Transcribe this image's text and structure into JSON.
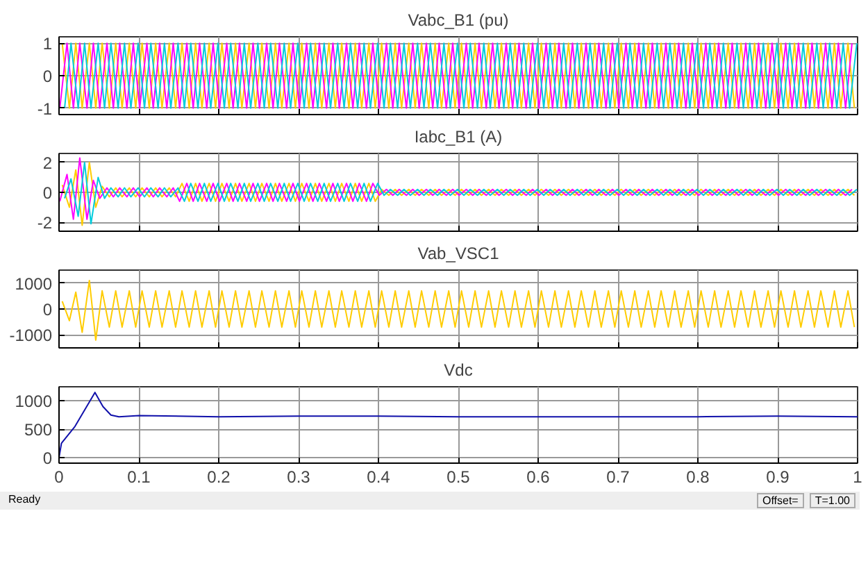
{
  "chart_data": [
    {
      "type": "line",
      "title": "Vabc_B1 (pu)",
      "xlim": [
        0,
        1
      ],
      "xticks": [
        0,
        0.1,
        0.2,
        0.3,
        0.4,
        0.5,
        0.6,
        0.7,
        0.8,
        0.9,
        1
      ],
      "ylim": [
        -1.2,
        1.2
      ],
      "yticks": [
        -1,
        0,
        1
      ],
      "grid": true,
      "tick_labels": "y",
      "series": [
        {
          "color": "#ffcc00",
          "x": [
            0.004,
            0.013,
            0.021,
            0.029,
            0.038,
            0.046,
            0.054,
            0.063,
            0.071,
            0.079,
            0.088,
            0.096,
            0.104,
            0.113,
            0.121,
            0.129,
            0.138,
            0.146,
            0.154,
            0.163,
            0.171,
            0.179,
            0.188,
            0.196,
            0.204,
            0.213,
            0.221,
            0.229,
            0.238,
            0.246,
            0.254,
            0.263,
            0.271,
            0.279,
            0.288,
            0.296,
            0.304,
            0.313,
            0.321,
            0.329,
            0.338,
            0.346,
            0.354,
            0.363,
            0.371,
            0.379,
            0.388,
            0.396,
            0.404,
            0.413,
            0.421,
            0.429,
            0.438,
            0.446,
            0.454,
            0.463,
            0.471,
            0.479,
            0.488,
            0.496,
            0.504,
            0.513,
            0.521,
            0.529,
            0.538,
            0.546,
            0.554,
            0.563,
            0.571,
            0.579,
            0.588,
            0.596,
            0.604,
            0.613,
            0.621,
            0.629,
            0.638,
            0.646,
            0.654,
            0.663,
            0.671,
            0.679,
            0.688,
            0.696,
            0.704,
            0.713,
            0.721,
            0.729,
            0.738,
            0.746,
            0.754,
            0.763,
            0.771,
            0.779,
            0.788,
            0.796,
            0.804,
            0.813,
            0.821,
            0.829,
            0.838,
            0.846,
            0.854,
            0.863,
            0.871,
            0.879,
            0.888,
            0.896,
            0.904,
            0.913,
            0.921,
            0.929,
            0.938,
            0.946,
            0.954,
            0.963,
            0.971,
            0.979,
            0.988,
            0.996
          ],
          "values": [
            1,
            -1,
            1,
            -1,
            1,
            -1,
            1,
            -1,
            1,
            -1,
            1,
            -1,
            1,
            -1,
            1,
            -1,
            1,
            -1,
            1,
            -1,
            1,
            -1,
            1,
            -1,
            1,
            -1,
            1,
            -1,
            1,
            -1,
            1,
            -1,
            1,
            -1,
            1,
            -1,
            1,
            -1,
            1,
            -1,
            1,
            -1,
            1,
            -1,
            1,
            -1,
            1,
            -1,
            1,
            -1,
            1,
            -1,
            1,
            -1,
            1,
            -1,
            1,
            -1,
            1,
            -1,
            1,
            -1,
            1,
            -1,
            1,
            -1,
            1,
            -1,
            1,
            -1,
            1,
            -1,
            1,
            -1,
            1,
            -1,
            1,
            -1,
            1,
            -1,
            1,
            -1,
            1,
            -1,
            1,
            -1,
            1,
            -1,
            1,
            -1,
            1,
            -1,
            1,
            -1,
            1,
            -1,
            1,
            -1,
            1,
            -1,
            1,
            -1,
            1,
            -1,
            1,
            -1,
            1,
            -1,
            1,
            -1,
            1,
            -1,
            1,
            -1,
            1,
            -1,
            1,
            -1,
            1,
            -1
          ]
        },
        {
          "color": "#ff00ff",
          "x": [
            0.001,
            0.01,
            0.018,
            0.026,
            0.035,
            0.043,
            0.051,
            0.06,
            0.068,
            0.076,
            0.085,
            0.093,
            0.101,
            0.11,
            0.118,
            0.126,
            0.135,
            0.143,
            0.151,
            0.16,
            0.168,
            0.176,
            0.185,
            0.193,
            0.201,
            0.21,
            0.218,
            0.226,
            0.235,
            0.243,
            0.251,
            0.26,
            0.268,
            0.276,
            0.285,
            0.293,
            0.301,
            0.31,
            0.318,
            0.326,
            0.335,
            0.343,
            0.351,
            0.36,
            0.368,
            0.376,
            0.385,
            0.393,
            0.401,
            0.41,
            0.418,
            0.426,
            0.435,
            0.443,
            0.451,
            0.46,
            0.468,
            0.476,
            0.485,
            0.493,
            0.501,
            0.51,
            0.518,
            0.526,
            0.535,
            0.543,
            0.551,
            0.56,
            0.568,
            0.576,
            0.585,
            0.593,
            0.601,
            0.61,
            0.618,
            0.626,
            0.635,
            0.643,
            0.651,
            0.66,
            0.668,
            0.676,
            0.685,
            0.693,
            0.701,
            0.71,
            0.718,
            0.726,
            0.735,
            0.743,
            0.751,
            0.76,
            0.768,
            0.776,
            0.785,
            0.793,
            0.801,
            0.81,
            0.818,
            0.826,
            0.835,
            0.843,
            0.851,
            0.86,
            0.868,
            0.876,
            0.885,
            0.893,
            0.901,
            0.91,
            0.918,
            0.926,
            0.935,
            0.943,
            0.951,
            0.96,
            0.968,
            0.976,
            0.985,
            0.993
          ],
          "values": [
            -1,
            1,
            -1,
            1,
            -1,
            1,
            -1,
            1,
            -1,
            1,
            -1,
            1,
            -1,
            1,
            -1,
            1,
            -1,
            1,
            -1,
            1,
            -1,
            1,
            -1,
            1,
            -1,
            1,
            -1,
            1,
            -1,
            1,
            -1,
            1,
            -1,
            1,
            -1,
            1,
            -1,
            1,
            -1,
            1,
            -1,
            1,
            -1,
            1,
            -1,
            1,
            -1,
            1,
            -1,
            1,
            -1,
            1,
            -1,
            1,
            -1,
            1,
            -1,
            1,
            -1,
            1,
            -1,
            1,
            -1,
            1,
            -1,
            1,
            -1,
            1,
            -1,
            1,
            -1,
            1,
            -1,
            1,
            -1,
            1,
            -1,
            1,
            -1,
            1,
            -1,
            1,
            -1,
            1,
            -1,
            1,
            -1,
            1,
            -1,
            1,
            -1,
            1,
            -1,
            1,
            -1,
            1,
            -1,
            1,
            -1,
            1,
            -1,
            1,
            -1,
            1,
            -1,
            1,
            -1,
            1,
            -1,
            1,
            -1,
            1,
            -1,
            1,
            -1,
            1,
            -1,
            1,
            -1,
            1
          ]
        },
        {
          "color": "#00ccdd",
          "x": [
            0.007,
            0.015,
            0.024,
            0.032,
            0.04,
            0.049,
            0.057,
            0.065,
            0.074,
            0.082,
            0.09,
            0.099,
            0.107,
            0.115,
            0.124,
            0.132,
            0.14,
            0.149,
            0.157,
            0.165,
            0.174,
            0.182,
            0.19,
            0.199,
            0.207,
            0.215,
            0.224,
            0.232,
            0.24,
            0.249,
            0.257,
            0.265,
            0.274,
            0.282,
            0.29,
            0.299,
            0.307,
            0.315,
            0.324,
            0.332,
            0.34,
            0.349,
            0.357,
            0.365,
            0.374,
            0.382,
            0.39,
            0.399,
            0.407,
            0.415,
            0.424,
            0.432,
            0.44,
            0.449,
            0.457,
            0.465,
            0.474,
            0.482,
            0.49,
            0.499,
            0.507,
            0.515,
            0.524,
            0.532,
            0.54,
            0.549,
            0.557,
            0.565,
            0.574,
            0.582,
            0.59,
            0.599,
            0.607,
            0.615,
            0.624,
            0.632,
            0.64,
            0.649,
            0.657,
            0.665,
            0.674,
            0.682,
            0.69,
            0.699,
            0.707,
            0.715,
            0.724,
            0.732,
            0.74,
            0.749,
            0.757,
            0.765,
            0.774,
            0.782,
            0.79,
            0.799,
            0.807,
            0.815,
            0.824,
            0.832,
            0.84,
            0.849,
            0.857,
            0.865,
            0.874,
            0.882,
            0.89,
            0.899,
            0.907,
            0.915,
            0.924,
            0.932,
            0.94,
            0.949,
            0.957,
            0.965,
            0.974,
            0.982,
            0.99,
            0.999
          ],
          "values": [
            -1,
            1,
            -1,
            1,
            -1,
            1,
            -1,
            1,
            -1,
            1,
            -1,
            1,
            -1,
            1,
            -1,
            1,
            -1,
            1,
            -1,
            1,
            -1,
            1,
            -1,
            1,
            -1,
            1,
            -1,
            1,
            -1,
            1,
            -1,
            1,
            -1,
            1,
            -1,
            1,
            -1,
            1,
            -1,
            1,
            -1,
            1,
            -1,
            1,
            -1,
            1,
            -1,
            1,
            -1,
            1,
            -1,
            1,
            -1,
            1,
            -1,
            1,
            -1,
            1,
            -1,
            1,
            -1,
            1,
            -1,
            1,
            -1,
            1,
            -1,
            1,
            -1,
            1,
            -1,
            1,
            -1,
            1,
            -1,
            1,
            -1,
            1,
            -1,
            1,
            -1,
            1,
            -1,
            1,
            -1,
            1,
            -1,
            1,
            -1,
            1,
            -1,
            1,
            -1,
            1,
            -1,
            1,
            -1,
            1,
            -1,
            1,
            -1,
            1,
            -1,
            1,
            -1,
            1,
            -1,
            1,
            -1,
            1,
            -1,
            1,
            -1,
            1,
            -1,
            1,
            -1,
            1,
            -1,
            1
          ]
        }
      ]
    },
    {
      "type": "line",
      "title": "Iabc_B1 (A)",
      "xlim": [
        0,
        1
      ],
      "xticks": [
        0,
        0.1,
        0.2,
        0.3,
        0.4,
        0.5,
        0.6,
        0.7,
        0.8,
        0.9,
        1
      ],
      "ylim": [
        -2.6,
        2.6
      ],
      "yticks": [
        -2,
        0,
        2
      ],
      "grid": true,
      "tick_labels": "y",
      "series": [
        {
          "color": "#ffcc00",
          "x": [
            0.004,
            0.013,
            0.021,
            0.029,
            0.038,
            0.046,
            0.054,
            0.063,
            0.071,
            0.079,
            0.088,
            0.096,
            0.104,
            0.113,
            0.121,
            0.129,
            0.138,
            0.146,
            0.154,
            0.163,
            0.171,
            0.179,
            0.188,
            0.196,
            0.204,
            0.213,
            0.221,
            0.229,
            0.238,
            0.246,
            0.254,
            0.263,
            0.271,
            0.279,
            0.288,
            0.296,
            0.304,
            0.313,
            0.321,
            0.329,
            0.338,
            0.346,
            0.354,
            0.363,
            0.371,
            0.379,
            0.388,
            0.396,
            0.404,
            0.413,
            0.421,
            0.429,
            0.438,
            0.446,
            0.454,
            0.463,
            0.471,
            0.479,
            0.488,
            0.496,
            0.504,
            0.513,
            0.521,
            0.529,
            0.538,
            0.546,
            0.554,
            0.563,
            0.571,
            0.579,
            0.588,
            0.596,
            0.604,
            0.613,
            0.621,
            0.629,
            0.638,
            0.646,
            0.654,
            0.663,
            0.671,
            0.679,
            0.688,
            0.696,
            0.704,
            0.713,
            0.721,
            0.729,
            0.738,
            0.746,
            0.754,
            0.763,
            0.771,
            0.779,
            0.788,
            0.796,
            0.804,
            0.813,
            0.821,
            0.829,
            0.838,
            0.846,
            0.854,
            0.863,
            0.871,
            0.879,
            0.888,
            0.896,
            0.904,
            0.913,
            0.921,
            0.929,
            0.938,
            0.946,
            0.954,
            0.963,
            0.971,
            0.979,
            0.988,
            0.996
          ],
          "values": [
            0.5,
            -1.0,
            1.5,
            -2.2,
            2.0,
            -1.0,
            0.4,
            -0.3,
            0.3,
            -0.3,
            0.3,
            -0.3,
            0.3,
            -0.3,
            0.3,
            -0.3,
            0.3,
            -0.3,
            0.6,
            -0.6,
            0.6,
            -0.6,
            0.6,
            -0.6,
            0.6,
            -0.6,
            0.6,
            -0.6,
            0.6,
            -0.6,
            0.6,
            -0.6,
            0.6,
            -0.6,
            0.6,
            -0.6,
            0.6,
            -0.6,
            0.6,
            -0.6,
            0.6,
            -0.6,
            0.6,
            -0.6,
            0.6,
            -0.6,
            0.6,
            -0.6,
            0.2,
            -0.2,
            0.2,
            -0.2,
            0.2,
            -0.2,
            0.2,
            -0.2,
            0.2,
            -0.2,
            0.2,
            -0.2,
            0.2,
            -0.2,
            0.2,
            -0.2,
            0.2,
            -0.2,
            0.2,
            -0.2,
            0.2,
            -0.2,
            0.2,
            -0.2,
            0.2,
            -0.2,
            0.2,
            -0.2,
            0.2,
            -0.2,
            0.2,
            -0.2,
            0.2,
            -0.2,
            0.2,
            -0.2,
            0.2,
            -0.2,
            0.2,
            -0.2,
            0.2,
            -0.2,
            0.2,
            -0.2,
            0.2,
            -0.2,
            0.2,
            -0.2,
            0.2,
            -0.2,
            0.2,
            -0.2,
            0.2,
            -0.2,
            0.2,
            -0.2,
            0.2,
            -0.2,
            0.2,
            -0.2,
            0.2,
            -0.2,
            0.2,
            -0.2,
            0.2,
            -0.2,
            0.2,
            -0.2,
            0.2,
            -0.2,
            0.2,
            -0.2
          ]
        },
        {
          "color": "#ff00ff",
          "x": [
            0.001,
            0.01,
            0.018,
            0.026,
            0.035,
            0.043,
            0.051,
            0.06,
            0.068,
            0.076,
            0.085,
            0.093,
            0.101,
            0.11,
            0.118,
            0.126,
            0.135,
            0.143,
            0.151,
            0.16,
            0.168,
            0.176,
            0.185,
            0.193,
            0.201,
            0.21,
            0.218,
            0.226,
            0.235,
            0.243,
            0.251,
            0.26,
            0.268,
            0.276,
            0.285,
            0.293,
            0.301,
            0.31,
            0.318,
            0.326,
            0.335,
            0.343,
            0.351,
            0.36,
            0.368,
            0.376,
            0.385,
            0.393,
            0.401,
            0.41,
            0.418,
            0.426,
            0.435,
            0.443,
            0.451,
            0.46,
            0.468,
            0.476,
            0.485,
            0.493,
            0.501,
            0.51,
            0.518,
            0.526,
            0.535,
            0.543,
            0.551,
            0.56,
            0.568,
            0.576,
            0.585,
            0.593,
            0.601,
            0.61,
            0.618,
            0.626,
            0.635,
            0.643,
            0.651,
            0.66,
            0.668,
            0.676,
            0.685,
            0.693,
            0.701,
            0.71,
            0.718,
            0.726,
            0.735,
            0.743,
            0.751,
            0.76,
            0.768,
            0.776,
            0.785,
            0.793,
            0.801,
            0.81,
            0.818,
            0.826,
            0.835,
            0.843,
            0.851,
            0.86,
            0.868,
            0.876,
            0.885,
            0.893,
            0.901,
            0.91,
            0.918,
            0.926,
            0.935,
            0.943,
            0.951,
            0.96,
            0.968,
            0.976,
            0.985,
            0.993
          ],
          "values": [
            -0.6,
            1.2,
            -1.8,
            2.3,
            -1.8,
            0.8,
            -0.4,
            0.3,
            -0.3,
            0.3,
            -0.3,
            0.3,
            -0.3,
            0.3,
            -0.3,
            0.3,
            -0.3,
            0.3,
            -0.6,
            0.6,
            -0.6,
            0.6,
            -0.6,
            0.6,
            -0.6,
            0.6,
            -0.6,
            0.6,
            -0.6,
            0.6,
            -0.6,
            0.6,
            -0.6,
            0.6,
            -0.6,
            0.6,
            -0.6,
            0.6,
            -0.6,
            0.6,
            -0.6,
            0.6,
            -0.6,
            0.6,
            -0.6,
            0.6,
            -0.6,
            0.6,
            -0.2,
            0.2,
            -0.2,
            0.2,
            -0.2,
            0.2,
            -0.2,
            0.2,
            -0.2,
            0.2,
            -0.2,
            0.2,
            -0.2,
            0.2,
            -0.2,
            0.2,
            -0.2,
            0.2,
            -0.2,
            0.2,
            -0.2,
            0.2,
            -0.2,
            0.2,
            -0.2,
            0.2,
            -0.2,
            0.2,
            -0.2,
            0.2,
            -0.2,
            0.2,
            -0.2,
            0.2,
            -0.2,
            0.2,
            -0.2,
            0.2,
            -0.2,
            0.2,
            -0.2,
            0.2,
            -0.2,
            0.2,
            -0.2,
            0.2,
            -0.2,
            0.2,
            -0.2,
            0.2,
            -0.2,
            0.2,
            -0.2,
            0.2,
            -0.2,
            0.2,
            -0.2,
            0.2,
            -0.2,
            0.2,
            -0.2,
            0.2,
            -0.2,
            0.2,
            -0.2,
            0.2,
            -0.2,
            0.2,
            -0.2,
            0.2,
            -0.2,
            0.2
          ]
        },
        {
          "color": "#00ccdd",
          "x": [
            0.007,
            0.015,
            0.024,
            0.032,
            0.04,
            0.049,
            0.057,
            0.065,
            0.074,
            0.082,
            0.09,
            0.099,
            0.107,
            0.115,
            0.124,
            0.132,
            0.14,
            0.149,
            0.157,
            0.165,
            0.174,
            0.182,
            0.19,
            0.199,
            0.207,
            0.215,
            0.224,
            0.232,
            0.24,
            0.249,
            0.257,
            0.265,
            0.274,
            0.282,
            0.29,
            0.299,
            0.307,
            0.315,
            0.324,
            0.332,
            0.34,
            0.349,
            0.357,
            0.365,
            0.374,
            0.382,
            0.39,
            0.399,
            0.407,
            0.415,
            0.424,
            0.432,
            0.44,
            0.449,
            0.457,
            0.465,
            0.474,
            0.482,
            0.49,
            0.499,
            0.507,
            0.515,
            0.524,
            0.532,
            0.54,
            0.549,
            0.557,
            0.565,
            0.574,
            0.582,
            0.59,
            0.599,
            0.607,
            0.615,
            0.624,
            0.632,
            0.64,
            0.649,
            0.657,
            0.665,
            0.674,
            0.682,
            0.69,
            0.699,
            0.707,
            0.715,
            0.724,
            0.732,
            0.74,
            0.749,
            0.757,
            0.765,
            0.774,
            0.782,
            0.79,
            0.799,
            0.807,
            0.815,
            0.824,
            0.832,
            0.84,
            0.849,
            0.857,
            0.865,
            0.874,
            0.882,
            0.89,
            0.899,
            0.907,
            0.915,
            0.924,
            0.932,
            0.94,
            0.949,
            0.957,
            0.965,
            0.974,
            0.982,
            0.99,
            0.999
          ],
          "values": [
            -0.4,
            0.9,
            -1.6,
            2.0,
            -2.1,
            1.0,
            -0.4,
            0.3,
            -0.3,
            0.3,
            -0.3,
            0.3,
            -0.3,
            0.3,
            -0.3,
            0.3,
            -0.3,
            0.3,
            -0.6,
            0.6,
            -0.6,
            0.6,
            -0.6,
            0.6,
            -0.6,
            0.6,
            -0.6,
            0.6,
            -0.6,
            0.6,
            -0.6,
            0.6,
            -0.6,
            0.6,
            -0.6,
            0.6,
            -0.6,
            0.6,
            -0.6,
            0.6,
            -0.6,
            0.6,
            -0.6,
            0.6,
            -0.6,
            0.6,
            -0.6,
            0.6,
            -0.2,
            0.2,
            -0.2,
            0.2,
            -0.2,
            0.2,
            -0.2,
            0.2,
            -0.2,
            0.2,
            -0.2,
            0.2,
            -0.2,
            0.2,
            -0.2,
            0.2,
            -0.2,
            0.2,
            -0.2,
            0.2,
            -0.2,
            0.2,
            -0.2,
            0.2,
            -0.2,
            0.2,
            -0.2,
            0.2,
            -0.2,
            0.2,
            -0.2,
            0.2,
            -0.2,
            0.2,
            -0.2,
            0.2,
            -0.2,
            0.2,
            -0.2,
            0.2,
            -0.2,
            0.2,
            -0.2,
            0.2,
            -0.2,
            0.2,
            -0.2,
            0.2,
            -0.2,
            0.2,
            -0.2,
            0.2,
            -0.2,
            0.2,
            -0.2,
            0.2,
            -0.2,
            0.2,
            -0.2,
            0.2,
            -0.2,
            0.2,
            -0.2,
            0.2,
            -0.2,
            0.2,
            -0.2,
            0.2,
            -0.2,
            0.2,
            -0.2,
            0.2
          ]
        }
      ]
    },
    {
      "type": "line",
      "title": "Vab_VSC1",
      "xlim": [
        0,
        1
      ],
      "xticks": [
        0,
        0.1,
        0.2,
        0.3,
        0.4,
        0.5,
        0.6,
        0.7,
        0.8,
        0.9,
        1
      ],
      "ylim": [
        -1500,
        1500
      ],
      "yticks": [
        -1000,
        0,
        1000
      ],
      "grid": true,
      "tick_labels": "y",
      "series": [
        {
          "color": "#ffcc00",
          "x": [
            0.004,
            0.013,
            0.021,
            0.029,
            0.038,
            0.046,
            0.054,
            0.063,
            0.071,
            0.079,
            0.088,
            0.096,
            0.104,
            0.113,
            0.121,
            0.129,
            0.138,
            0.146,
            0.154,
            0.163,
            0.171,
            0.179,
            0.188,
            0.196,
            0.204,
            0.213,
            0.221,
            0.229,
            0.238,
            0.246,
            0.254,
            0.263,
            0.271,
            0.279,
            0.288,
            0.296,
            0.304,
            0.313,
            0.321,
            0.329,
            0.338,
            0.346,
            0.354,
            0.363,
            0.371,
            0.379,
            0.388,
            0.396,
            0.404,
            0.413,
            0.421,
            0.429,
            0.438,
            0.446,
            0.454,
            0.463,
            0.471,
            0.479,
            0.488,
            0.496,
            0.504,
            0.513,
            0.521,
            0.529,
            0.538,
            0.546,
            0.554,
            0.563,
            0.571,
            0.579,
            0.588,
            0.596,
            0.604,
            0.613,
            0.621,
            0.629,
            0.638,
            0.646,
            0.654,
            0.663,
            0.671,
            0.679,
            0.688,
            0.696,
            0.704,
            0.713,
            0.721,
            0.729,
            0.738,
            0.746,
            0.754,
            0.763,
            0.771,
            0.779,
            0.788,
            0.796,
            0.804,
            0.813,
            0.821,
            0.829,
            0.838,
            0.846,
            0.854,
            0.863,
            0.871,
            0.879,
            0.888,
            0.896,
            0.904,
            0.913,
            0.921,
            0.929,
            0.938,
            0.946,
            0.954,
            0.963,
            0.971,
            0.979,
            0.988,
            0.996
          ],
          "values": [
            300,
            -450,
            650,
            -900,
            1100,
            -1200,
            700,
            -700,
            700,
            -700,
            700,
            -700,
            700,
            -700,
            700,
            -700,
            700,
            -700,
            700,
            -700,
            700,
            -700,
            700,
            -700,
            700,
            -700,
            700,
            -700,
            700,
            -700,
            700,
            -700,
            700,
            -700,
            700,
            -700,
            700,
            -700,
            700,
            -700,
            700,
            -700,
            700,
            -700,
            700,
            -700,
            700,
            -700,
            700,
            -700,
            700,
            -700,
            700,
            -700,
            700,
            -700,
            700,
            -700,
            700,
            -700,
            700,
            -700,
            700,
            -700,
            700,
            -700,
            700,
            -700,
            700,
            -700,
            700,
            -700,
            700,
            -700,
            700,
            -700,
            700,
            -700,
            700,
            -700,
            700,
            -700,
            700,
            -700,
            700,
            -700,
            700,
            -700,
            700,
            -700,
            700,
            -700,
            700,
            -700,
            700,
            -700,
            700,
            -700,
            700,
            -700,
            700,
            -700,
            700,
            -700,
            700,
            -700,
            700,
            -700,
            700,
            -700,
            700,
            -700,
            700,
            -700,
            700,
            -700,
            700,
            -700,
            700,
            -700
          ]
        }
      ]
    },
    {
      "type": "line",
      "title": "Vdc",
      "xlim": [
        0,
        1
      ],
      "xticks": [
        0,
        0.1,
        0.2,
        0.3,
        0.4,
        0.5,
        0.6,
        0.7,
        0.8,
        0.9,
        1
      ],
      "ylim": [
        -100,
        1250
      ],
      "yticks": [
        0,
        500,
        1000
      ],
      "grid": true,
      "annotations": [
        "Ready",
        "Offset=",
        "T=1.00"
      ],
      "series": [
        {
          "color": "#1010aa",
          "x": [
            0,
            0.003,
            0.02,
            0.045,
            0.055,
            0.065,
            0.075,
            0.1,
            0.2,
            0.3,
            0.4,
            0.5,
            0.6,
            0.7,
            0.8,
            0.9,
            1
          ],
          "values": [
            0,
            250,
            550,
            1150,
            900,
            750,
            720,
            740,
            720,
            730,
            730,
            720,
            720,
            720,
            720,
            730,
            720
          ]
        }
      ]
    }
  ]
}
